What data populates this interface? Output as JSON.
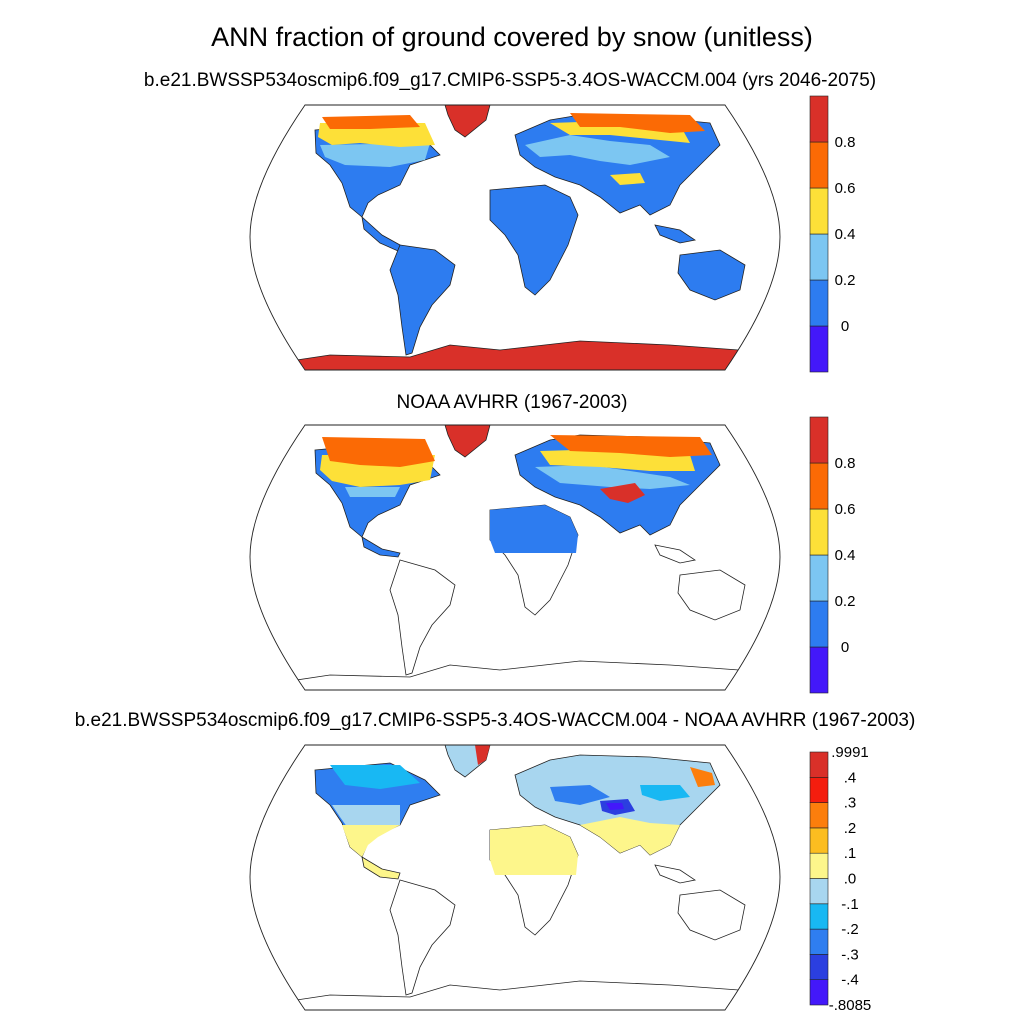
{
  "title": "ANN fraction of ground covered by snow (unitless)",
  "panels": [
    {
      "subtitle": "b.e21.BWSSP534oscmip6.f09_g17.CMIP6-SSP5-3.4OS-WACCM.004 (yrs 2046-2075)",
      "colorbar": {
        "colors": [
          "#4318fa",
          "#2d7cf0",
          "#7cc6f2",
          "#fde038",
          "#fb6a05",
          "#d93029"
        ],
        "labels": [
          "0",
          "0.2",
          "0.4",
          "0.6",
          "0.8"
        ]
      }
    },
    {
      "subtitle": "NOAA AVHRR (1967-2003)",
      "colorbar": {
        "colors": [
          "#4318fa",
          "#2d7cf0",
          "#7cc6f2",
          "#fde038",
          "#fb6a05",
          "#d93029"
        ],
        "labels": [
          "0",
          "0.2",
          "0.4",
          "0.6",
          "0.8"
        ]
      }
    },
    {
      "subtitle": "b.e21.BWSSP534oscmip6.f09_g17.CMIP6-SSP5-3.4OS-WACCM.004 - NOAA AVHRR (1967-2003)",
      "colorbar": {
        "colors": [
          "#4318fa",
          "#2b3fe0",
          "#2f7ef0",
          "#18b8f3",
          "#a8d6ef",
          "#fdf68b",
          "#fcbd20",
          "#fc7e0c",
          "#f41d0e",
          "#d93029"
        ],
        "labels": [
          "-.8085",
          "-.4",
          "-.3",
          "-.2",
          "-.1",
          ".0",
          ".1",
          ".2",
          ".3",
          ".4",
          ".9991"
        ]
      }
    }
  ]
}
